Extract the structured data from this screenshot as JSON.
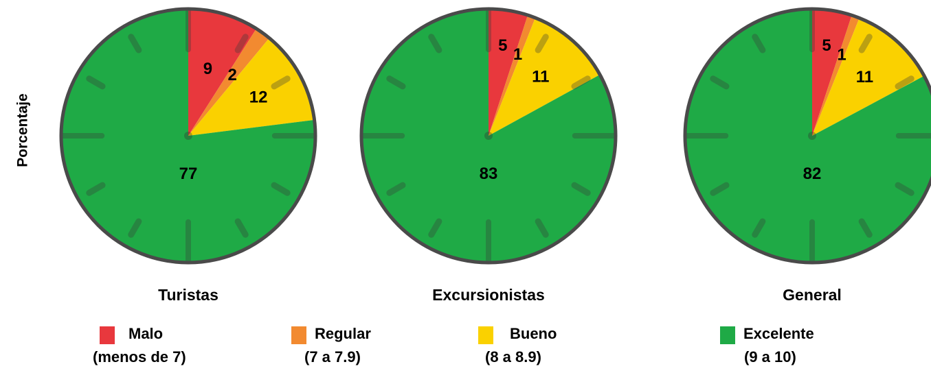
{
  "chart_data": {
    "type": "pie",
    "ylabel": "Porcentaje",
    "categories": [
      "Malo",
      "Regular",
      "Bueno",
      "Excelente"
    ],
    "category_ranges": [
      "(menos de 7)",
      "(7 a 7.9)",
      "(8 a 8.9)",
      "(9 a 10)"
    ],
    "colors": [
      "#e8383d",
      "#f28a30",
      "#fad100",
      "#1faa46"
    ],
    "series": [
      {
        "name": "Turistas",
        "values": [
          9,
          2,
          12,
          77
        ]
      },
      {
        "name": "Excursionistas",
        "values": [
          5,
          1,
          11,
          83
        ]
      },
      {
        "name": "General",
        "values": [
          5,
          1,
          11,
          82
        ]
      }
    ],
    "legend": "bottom"
  }
}
